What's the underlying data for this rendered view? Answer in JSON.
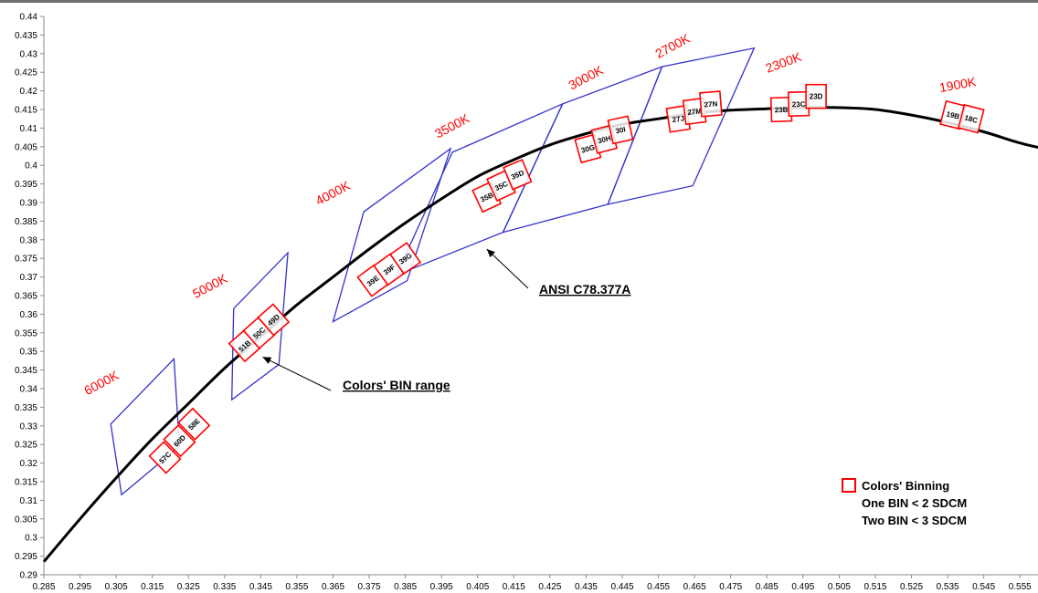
{
  "chart_data": {
    "type": "scatter",
    "title": "",
    "xlabel": "",
    "ylabel": "",
    "xlim": [
      0.285,
      0.56
    ],
    "ylim": [
      0.29,
      0.44
    ],
    "grid": false,
    "x_ticks": [
      "0.285",
      "0.295",
      "0.305",
      "0.315",
      "0.325",
      "0.335",
      "0.345",
      "0.355",
      "0.365",
      "0.375",
      "0.385",
      "0.395",
      "0.405",
      "0.415",
      "0.425",
      "0.435",
      "0.445",
      "0.455",
      "0.465",
      "0.475",
      "0.485",
      "0.495",
      "0.505",
      "0.515",
      "0.525",
      "0.535",
      "0.545",
      "0.555"
    ],
    "y_ticks": [
      "0.29",
      "0.295",
      "0.3",
      "0.305",
      "0.31",
      "0.315",
      "0.32",
      "0.325",
      "0.33",
      "0.335",
      "0.34",
      "0.345",
      "0.35",
      "0.355",
      "0.36",
      "0.365",
      "0.37",
      "0.375",
      "0.38",
      "0.385",
      "0.39",
      "0.395",
      "0.4",
      "0.405",
      "0.41",
      "0.415",
      "0.42",
      "0.425",
      "0.43",
      "0.435",
      "0.44"
    ],
    "planckian_locus": {
      "x": [
        0.285,
        0.295,
        0.305,
        0.315,
        0.325,
        0.335,
        0.345,
        0.355,
        0.365,
        0.375,
        0.385,
        0.395,
        0.405,
        0.415,
        0.425,
        0.435,
        0.445,
        0.455,
        0.465,
        0.475,
        0.485,
        0.495,
        0.505,
        0.515,
        0.525,
        0.535,
        0.545,
        0.555,
        0.5615
      ],
      "y": [
        0.2935,
        0.305,
        0.316,
        0.3265,
        0.336,
        0.3455,
        0.354,
        0.3625,
        0.37,
        0.3775,
        0.3845,
        0.391,
        0.397,
        0.4015,
        0.4055,
        0.4085,
        0.411,
        0.4125,
        0.414,
        0.4148,
        0.4152,
        0.4155,
        0.4155,
        0.415,
        0.4135,
        0.4115,
        0.409,
        0.406,
        0.4045
      ]
    },
    "ansi_quadrangles": [
      {
        "label": "6000K",
        "points": [
          [
            0.3035,
            0.3305
          ],
          [
            0.321,
            0.348
          ],
          [
            0.3225,
            0.3245
          ],
          [
            0.3065,
            0.3115
          ]
        ]
      },
      {
        "label": "5000K",
        "points": [
          [
            0.3375,
            0.3615
          ],
          [
            0.3525,
            0.3765
          ],
          [
            0.35,
            0.3465
          ],
          [
            0.337,
            0.337
          ]
        ]
      },
      {
        "label": "4000K",
        "points": [
          [
            0.3735,
            0.3875
          ],
          [
            0.3975,
            0.4045
          ],
          [
            0.3855,
            0.369
          ],
          [
            0.365,
            0.358
          ]
        ]
      },
      {
        "label": "3500K",
        "points": [
          [
            0.398,
            0.4035
          ],
          [
            0.4285,
            0.4165
          ],
          [
            0.412,
            0.382
          ],
          [
            0.3825,
            0.3705
          ]
        ]
      },
      {
        "label": "3000K",
        "points": [
          [
            0.4285,
            0.4165
          ],
          [
            0.456,
            0.4265
          ],
          [
            0.441,
            0.3895
          ],
          [
            0.412,
            0.382
          ]
        ]
      },
      {
        "label": "2700K",
        "points": [
          [
            0.456,
            0.4265
          ],
          [
            0.4815,
            0.4315
          ],
          [
            0.4645,
            0.3945
          ],
          [
            0.441,
            0.3895
          ]
        ]
      }
    ],
    "cct_labels": [
      {
        "text": "6000K",
        "x": 0.3015,
        "y": 0.3405
      },
      {
        "text": "5000K",
        "x": 0.3315,
        "y": 0.3665
      },
      {
        "text": "4000K",
        "x": 0.3655,
        "y": 0.3915
      },
      {
        "text": "3500K",
        "x": 0.3985,
        "y": 0.4095
      },
      {
        "text": "3000K",
        "x": 0.4355,
        "y": 0.4225
      },
      {
        "text": "2700K",
        "x": 0.4595,
        "y": 0.431
      },
      {
        "text": "2300K",
        "x": 0.49,
        "y": 0.4265
      },
      {
        "text": "1900K",
        "x": 0.538,
        "y": 0.4205
      }
    ],
    "bins": [
      {
        "code": "57C",
        "x": 0.3185,
        "y": 0.3215
      },
      {
        "code": "60D",
        "x": 0.3225,
        "y": 0.326
      },
      {
        "code": "58E",
        "x": 0.3265,
        "y": 0.3305
      },
      {
        "code": "51B",
        "x": 0.3405,
        "y": 0.3515
      },
      {
        "code": "50C",
        "x": 0.3445,
        "y": 0.355
      },
      {
        "code": "49D",
        "x": 0.3485,
        "y": 0.3585
      },
      {
        "code": "39E",
        "x": 0.376,
        "y": 0.369
      },
      {
        "code": "39F",
        "x": 0.3805,
        "y": 0.372
      },
      {
        "code": "39G",
        "x": 0.385,
        "y": 0.375
      },
      {
        "code": "35B",
        "x": 0.4075,
        "y": 0.3915
      },
      {
        "code": "35C",
        "x": 0.4115,
        "y": 0.3945
      },
      {
        "code": "35D",
        "x": 0.416,
        "y": 0.3975
      },
      {
        "code": "30G",
        "x": 0.4355,
        "y": 0.4045
      },
      {
        "code": "30H",
        "x": 0.44,
        "y": 0.407
      },
      {
        "code": "30I",
        "x": 0.4445,
        "y": 0.4095
      },
      {
        "code": "27J",
        "x": 0.4605,
        "y": 0.4125
      },
      {
        "code": "27M",
        "x": 0.465,
        "y": 0.4145
      },
      {
        "code": "27N",
        "x": 0.4695,
        "y": 0.4165
      },
      {
        "code": "23B",
        "x": 0.489,
        "y": 0.415
      },
      {
        "code": "23C",
        "x": 0.4938,
        "y": 0.4165
      },
      {
        "code": "23D",
        "x": 0.4986,
        "y": 0.4185
      },
      {
        "code": "19B",
        "x": 0.5365,
        "y": 0.4135
      },
      {
        "code": "18C",
        "x": 0.5415,
        "y": 0.4125
      }
    ],
    "annotations": [
      {
        "text": "ANSI C78.377A",
        "target": [
          0.4075,
          0.3775
        ]
      },
      {
        "text": "Colors' BIN range",
        "target": [
          0.3455,
          0.3485
        ]
      }
    ],
    "legend": {
      "placement": "bottom-right",
      "symbol_color": "#ff0000",
      "lines": [
        "Colors' Binning",
        "One BIN < 2 SDCM",
        "Two BIN < 3 SDCM"
      ]
    },
    "colors": {
      "locus": "#000000",
      "ansi": "#3333cc",
      "bins": "#ff0000",
      "cct_text": "#ff0000"
    }
  }
}
